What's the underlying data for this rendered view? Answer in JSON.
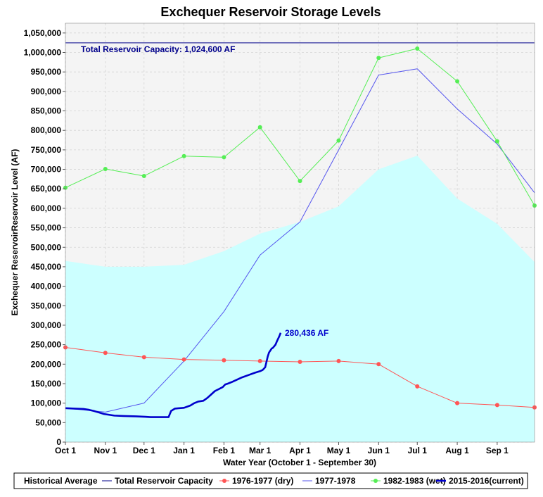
{
  "chart_data": {
    "type": "line",
    "title": "Exchequer Reservoir Storage Levels",
    "xlabel": "Water Year (October 1 - September 30)",
    "ylabel": "Exchequer ReservoirReservoir Level (AF)",
    "ylim": [
      0,
      1075000
    ],
    "ytick_step": 50000,
    "xlim": [
      0,
      364
    ],
    "grid": true,
    "legend_position": "bottom",
    "x_ticks": [
      {
        "label": "Oct 1",
        "day": 0
      },
      {
        "label": "Nov 1",
        "day": 31
      },
      {
        "label": "Dec 1",
        "day": 61
      },
      {
        "label": "Jan 1",
        "day": 92
      },
      {
        "label": "Feb 1",
        "day": 123
      },
      {
        "label": "Mar 1",
        "day": 151
      },
      {
        "label": "Apr 1",
        "day": 182
      },
      {
        "label": "May 1",
        "day": 212
      },
      {
        "label": "Jun 1",
        "day": 243
      },
      {
        "label": "Jul 1",
        "day": 273
      },
      {
        "label": "Aug 1",
        "day": 304
      },
      {
        "label": "Sep 1",
        "day": 335
      }
    ],
    "series": [
      {
        "name": "Historical Average",
        "style": "area",
        "color": "#ccffff",
        "x": [
          0,
          31,
          61,
          92,
          123,
          151,
          182,
          212,
          243,
          273,
          304,
          335,
          364
        ],
        "y": [
          465000,
          450000,
          450000,
          455000,
          490000,
          535000,
          565000,
          605000,
          700000,
          735000,
          625000,
          560000,
          462000
        ]
      },
      {
        "name": "Total Reservoir Capacity",
        "style": "line",
        "color": "#00008b",
        "x": [
          0,
          364
        ],
        "y": [
          1024600,
          1024600
        ]
      },
      {
        "name": "1976-1977 (dry)",
        "style": "line-marker",
        "color": "#ff5555",
        "x": [
          0,
          31,
          61,
          92,
          123,
          151,
          182,
          212,
          243,
          273,
          304,
          335,
          364
        ],
        "y": [
          243000,
          229000,
          218000,
          212000,
          210000,
          208000,
          206000,
          208000,
          200000,
          143000,
          100000,
          95000,
          89000
        ]
      },
      {
        "name": "1977-1978",
        "style": "line",
        "color": "#5555ee",
        "x": [
          0,
          31,
          61,
          92,
          123,
          151,
          182,
          212,
          243,
          273,
          304,
          335,
          364
        ],
        "y": [
          87000,
          77000,
          100000,
          208000,
          335000,
          480000,
          565000,
          750000,
          942000,
          958000,
          855000,
          765000,
          640000
        ]
      },
      {
        "name": "1982-1983 (wet)",
        "style": "line-marker",
        "color": "#55ee55",
        "x": [
          0,
          31,
          61,
          92,
          123,
          151,
          182,
          212,
          243,
          273,
          304,
          335,
          364
        ],
        "y": [
          653000,
          701000,
          683000,
          734000,
          731000,
          808000,
          670000,
          774000,
          986000,
          1010000,
          926000,
          772000,
          607000
        ]
      },
      {
        "name": "2015-2016(current)",
        "style": "thick-line",
        "color": "#0000cc",
        "x": [
          0,
          7,
          14,
          18,
          22,
          26,
          30,
          34,
          38,
          45,
          55,
          62,
          66,
          75,
          80,
          82,
          85,
          92,
          97,
          100,
          103,
          107,
          110,
          113,
          116,
          119,
          122,
          124,
          126,
          129,
          133,
          137,
          142,
          147,
          151,
          153,
          155,
          157,
          158,
          160,
          161,
          163,
          164,
          165,
          166,
          167
        ],
        "y": [
          87000,
          86000,
          85000,
          83000,
          80000,
          76000,
          72000,
          70000,
          68000,
          67000,
          66000,
          65000,
          64000,
          64000,
          64000,
          80000,
          86000,
          88000,
          94000,
          100000,
          104000,
          106000,
          113000,
          122000,
          131000,
          136000,
          141000,
          148000,
          150000,
          154000,
          160000,
          166000,
          172000,
          178000,
          182000,
          185000,
          192000,
          220000,
          230000,
          240000,
          242000,
          250000,
          258000,
          265000,
          272000,
          280436
        ]
      }
    ],
    "annotations": {
      "capacity_label": "Total Reservoir Capacity: 1,024,600 AF",
      "current_label": "280,436 AF"
    }
  }
}
